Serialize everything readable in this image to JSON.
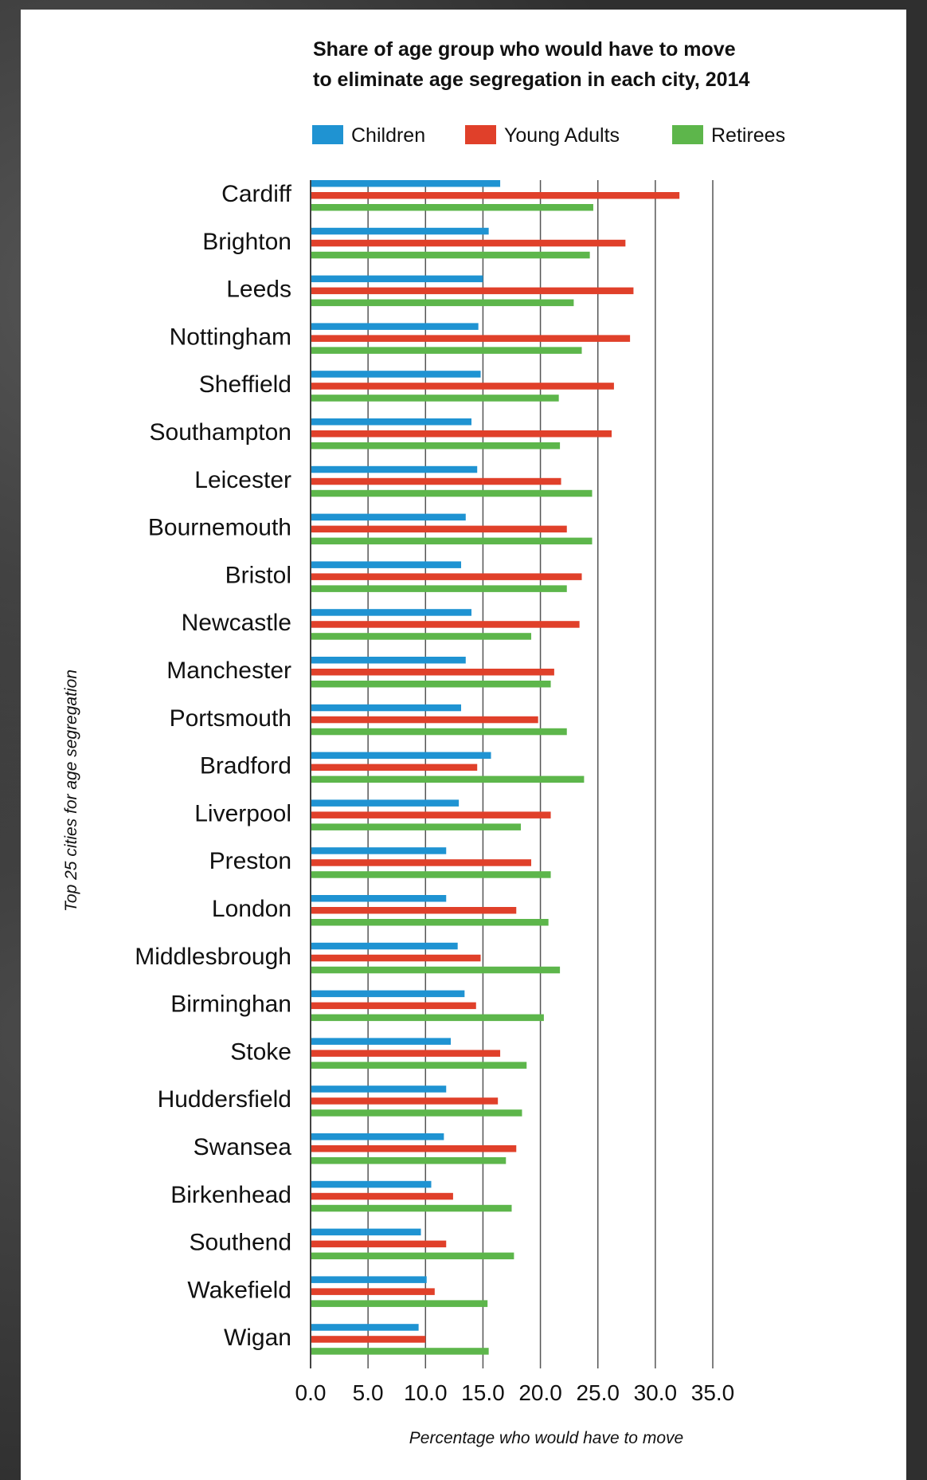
{
  "chart_data": {
    "type": "bar",
    "orientation": "horizontal",
    "title_line1": "Share of age group who would have to move",
    "title_line2": "to eliminate age segregation in each city, 2014",
    "xlabel": "Percentage who would have to move",
    "ylabel": "Top 25 cities for age segregation",
    "xlim": [
      0,
      35
    ],
    "xticks": [
      "0.0",
      "5.0",
      "10.0",
      "15.0",
      "20.0",
      "25.0",
      "30.0",
      "35.0"
    ],
    "grid": true,
    "legend_position": "top",
    "categories": [
      "Cardiff",
      "Brighton",
      "Leeds",
      "Nottingham",
      "Sheffield",
      "Southampton",
      "Leicester",
      "Bournemouth",
      "Bristol",
      "Newcastle",
      "Manchester",
      "Portsmouth",
      "Bradford",
      "Liverpool",
      "Preston",
      "London",
      "Middlesbrough",
      "Birminghan",
      "Stoke",
      "Huddersfield",
      "Swansea",
      "Birkenhead",
      "Southend",
      "Wakefield",
      "Wigan"
    ],
    "series": [
      {
        "name": "Children",
        "color": "#1f93d2",
        "values": [
          16.5,
          15.5,
          15.0,
          14.6,
          14.8,
          14.0,
          14.5,
          13.5,
          13.1,
          14.0,
          13.5,
          13.1,
          15.7,
          12.9,
          11.8,
          11.8,
          12.8,
          13.4,
          12.2,
          11.8,
          11.6,
          10.5,
          9.6,
          10.1,
          9.4
        ]
      },
      {
        "name": "Young Adults",
        "color": "#e0402a",
        "values": [
          32.1,
          27.4,
          28.1,
          27.8,
          26.4,
          26.2,
          21.8,
          22.3,
          23.6,
          23.4,
          21.2,
          19.8,
          14.5,
          20.9,
          19.2,
          17.9,
          14.8,
          14.4,
          16.5,
          16.3,
          17.9,
          12.4,
          11.8,
          10.8,
          10.0
        ]
      },
      {
        "name": "Retirees",
        "color": "#5db64b",
        "values": [
          24.6,
          24.3,
          22.9,
          23.6,
          21.6,
          21.7,
          24.5,
          24.5,
          22.3,
          19.2,
          20.9,
          22.3,
          23.8,
          18.3,
          20.9,
          20.7,
          21.7,
          20.3,
          18.8,
          18.4,
          17.0,
          17.5,
          17.7,
          15.4,
          15.5
        ]
      }
    ]
  }
}
